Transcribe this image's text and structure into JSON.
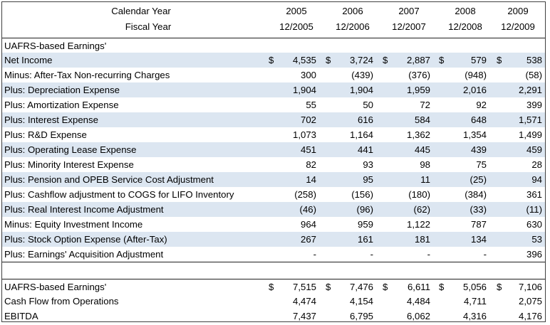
{
  "header": {
    "row1_label": "Calendar Year",
    "row2_label": "Fiscal Year",
    "years": [
      "2005",
      "2006",
      "2007",
      "2008",
      "2009"
    ],
    "periods": [
      "12/2005",
      "12/2006",
      "12/2007",
      "12/2008",
      "12/2009"
    ]
  },
  "section_title": "UAFRS-based Earnings'",
  "rows": [
    {
      "label": "Net Income",
      "dollar": true,
      "values": [
        "4,535",
        "3,724",
        "2,887",
        "579",
        "538"
      ]
    },
    {
      "label": "Minus: After-Tax Non-recurring Charges",
      "values": [
        "300",
        "(439)",
        "(376)",
        "(948)",
        "(58)"
      ]
    },
    {
      "label": "Plus: Depreciation Expense",
      "values": [
        "1,904",
        "1,904",
        "1,959",
        "2,016",
        "2,291"
      ]
    },
    {
      "label": "Plus: Amortization Expense",
      "values": [
        "55",
        "50",
        "72",
        "92",
        "399"
      ]
    },
    {
      "label": "Plus: Interest Expense",
      "values": [
        "702",
        "616",
        "584",
        "648",
        "1,571"
      ]
    },
    {
      "label": "Plus: R&D Expense",
      "values": [
        "1,073",
        "1,164",
        "1,362",
        "1,354",
        "1,499"
      ]
    },
    {
      "label": "Plus: Operating Lease Expense",
      "values": [
        "451",
        "441",
        "445",
        "439",
        "459"
      ]
    },
    {
      "label": "Plus: Minority Interest Expense",
      "values": [
        "82",
        "93",
        "98",
        "75",
        "28"
      ]
    },
    {
      "label": "Plus: Pension and OPEB Service Cost Adjustment",
      "values": [
        "14",
        "95",
        "11",
        "(25)",
        "94"
      ]
    },
    {
      "label": "Plus: Cashflow adjustment to COGS for LIFO Inventory",
      "values": [
        "(258)",
        "(156)",
        "(180)",
        "(384)",
        "361"
      ]
    },
    {
      "label": "Plus: Real Interest Income Adjustment",
      "values": [
        "(46)",
        "(96)",
        "(62)",
        "(33)",
        "(11)"
      ]
    },
    {
      "label": "Minus: Equity Investment Income",
      "values": [
        "964",
        "959",
        "1,122",
        "787",
        "630"
      ]
    },
    {
      "label": "Plus: Stock Option Expense (After-Tax)",
      "values": [
        "267",
        "161",
        "181",
        "134",
        "53"
      ]
    },
    {
      "label": "Plus: Earnings' Acquisition Adjustment",
      "values": [
        "-",
        "-",
        "-",
        "-",
        "396"
      ]
    }
  ],
  "summary": [
    {
      "label": "UAFRS-based Earnings'",
      "dollar": true,
      "values": [
        "7,515",
        "7,476",
        "6,611",
        "5,056",
        "7,106"
      ]
    },
    {
      "label": "Cash Flow from Operations",
      "values": [
        "4,474",
        "4,154",
        "4,484",
        "4,711",
        "2,075"
      ]
    },
    {
      "label": "EBITDA",
      "values": [
        "7,437",
        "6,795",
        "6,062",
        "4,316",
        "4,176"
      ]
    }
  ],
  "currency_symbol": "$",
  "colors": {
    "shade": "#dce6f1",
    "border": "#1f1f1f"
  }
}
